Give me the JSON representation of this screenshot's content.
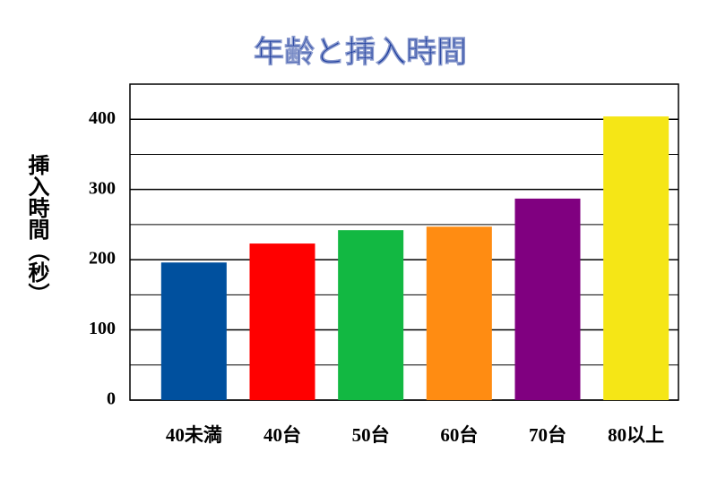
{
  "chart_data": {
    "type": "bar",
    "title": "年齢と挿入時間",
    "y_label": "挿入時間（秒）",
    "categories": [
      "40未満",
      "40台",
      "50台",
      "60台",
      "70台",
      "80以上"
    ],
    "values": [
      196,
      223,
      242,
      247,
      287,
      404
    ],
    "colors": [
      "#00509e",
      "#ff0000",
      "#12b842",
      "#ff8c12",
      "#800080",
      "#f5e616"
    ],
    "ylim": [
      0,
      450
    ],
    "yticks": [
      0,
      100,
      200,
      300,
      400
    ],
    "minor_yticks": [
      50,
      150,
      250,
      350
    ],
    "grid": true
  }
}
